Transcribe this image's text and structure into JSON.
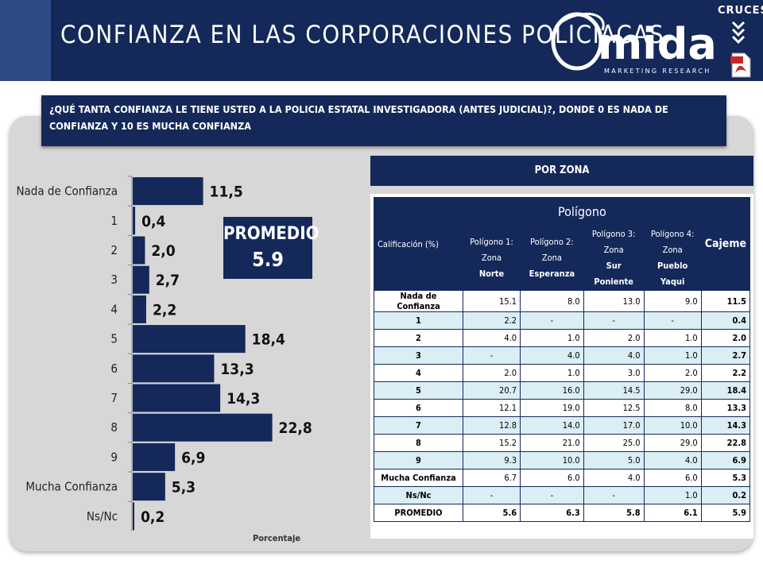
{
  "header": {
    "title": "CONFIANZA EN LAS CORPORACIONES POLICIACAS",
    "logo_text": "mida",
    "logo_subtitle": "MARKETING RESEARCH",
    "cruces_label": "CRUCES"
  },
  "question": {
    "text": "¿QUÉ TANTA CONFIANZA LE TIENE USTED A LA POLICIA ESTATAL INVESTIGADORA (ANTES JUDICIAL)?, DONDE 0 ES NADA DE CONFIANZA Y 10 ES MUCHA CONFIANZA"
  },
  "promedio": {
    "label": "PROMEDIO",
    "value": "5.9"
  },
  "chart_data": {
    "type": "bar",
    "orientation": "horizontal",
    "categories": [
      "Nada de Confianza",
      "1",
      "2",
      "3",
      "4",
      "5",
      "6",
      "7",
      "8",
      "9",
      "Mucha Confianza",
      "Ns/Nc"
    ],
    "values": [
      11.5,
      0.4,
      2.0,
      2.7,
      2.2,
      18.4,
      13.3,
      14.3,
      22.8,
      6.9,
      5.3,
      0.2
    ],
    "data_labels": [
      "11,5",
      "0,4",
      "2,0",
      "2,7",
      "2,2",
      "18,4",
      "13,3",
      "14,3",
      "22,8",
      "6,9",
      "5,3",
      "0,2"
    ],
    "xlabel": "Porcentaje",
    "ylabel": "",
    "grid": false,
    "colors": {
      "bar": "#14285a"
    }
  },
  "zone_table": {
    "banner": "POR ZONA",
    "header_calif": "Calificación (%)",
    "header_poligono": "Polígono",
    "header_cajeme": "Cajeme",
    "columns": [
      {
        "line1": "Polígono 1: Zona",
        "line2": "Norte"
      },
      {
        "line1": "Polígono 2: Zona",
        "line2": "Esperanza"
      },
      {
        "line1": "Polígono 3: Zona",
        "line2": "Sur Poniente"
      },
      {
        "line1": "Polígono 4: Zona",
        "line2": "Pueblo Yaqui"
      }
    ],
    "rows": [
      {
        "label": "Nada de Confianza",
        "values": [
          "15.1",
          "8.0",
          "13.0",
          "9.0"
        ],
        "cajeme": "11.5"
      },
      {
        "label": "1",
        "values": [
          "2.2",
          "-",
          "-",
          "-"
        ],
        "cajeme": "0.4"
      },
      {
        "label": "2",
        "values": [
          "4.0",
          "1.0",
          "2.0",
          "1.0"
        ],
        "cajeme": "2.0"
      },
      {
        "label": "3",
        "values": [
          "-",
          "4.0",
          "4.0",
          "1.0"
        ],
        "cajeme": "2.7"
      },
      {
        "label": "4",
        "values": [
          "2.0",
          "1.0",
          "3.0",
          "2.0"
        ],
        "cajeme": "2.2"
      },
      {
        "label": "5",
        "values": [
          "20.7",
          "16.0",
          "14.5",
          "29.0"
        ],
        "cajeme": "18.4"
      },
      {
        "label": "6",
        "values": [
          "12.1",
          "19.0",
          "12.5",
          "8.0"
        ],
        "cajeme": "13.3"
      },
      {
        "label": "7",
        "values": [
          "12.8",
          "14.0",
          "17.0",
          "10.0"
        ],
        "cajeme": "14.3"
      },
      {
        "label": "8",
        "values": [
          "15.2",
          "21.0",
          "25.0",
          "29.0"
        ],
        "cajeme": "22.8"
      },
      {
        "label": "9",
        "values": [
          "9.3",
          "10.0",
          "5.0",
          "4.0"
        ],
        "cajeme": "6.9"
      },
      {
        "label": "Mucha Confianza",
        "values": [
          "6.7",
          "6.0",
          "4.0",
          "6.0"
        ],
        "cajeme": "5.3"
      },
      {
        "label": "Ns/Nc",
        "values": [
          "-",
          "-",
          "-",
          "1.0"
        ],
        "cajeme": "0.2"
      },
      {
        "label": "PROMEDIO",
        "values": [
          "5.6",
          "6.3",
          "5.8",
          "6.1"
        ],
        "cajeme": "5.9"
      }
    ]
  }
}
